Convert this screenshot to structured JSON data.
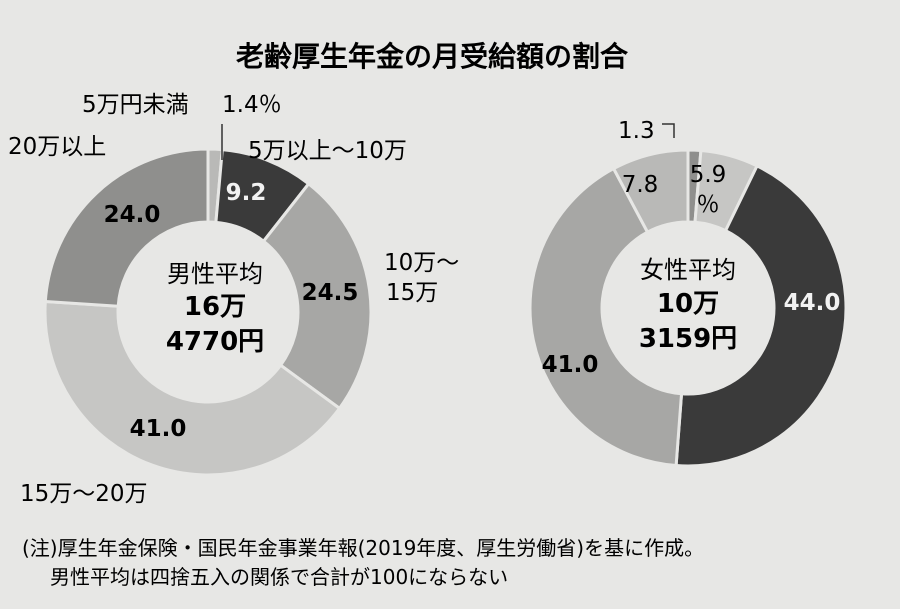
{
  "title": "老齢厚生年金の月受給額の割合",
  "chart_data": [
    {
      "type": "pie",
      "center_label": {
        "line1": "男性平均",
        "line2": "16万",
        "line3": "4770円"
      },
      "slices": [
        {
          "category": "5万円未満",
          "value": 1.4,
          "value_label": "1.4%",
          "color": "#b9b9b7"
        },
        {
          "category": "5万以上～10万",
          "value": 9.2,
          "value_label": "9.2",
          "color": "#3a3a3a"
        },
        {
          "category": "10万～15万",
          "value": 24.5,
          "value_label": "24.5",
          "color": "#a7a7a5"
        },
        {
          "category": "15万～20万",
          "value": 41.0,
          "value_label": "41.0",
          "color": "#c6c6c4"
        },
        {
          "category": "20万以上",
          "value": 24.0,
          "value_label": "24.0",
          "color": "#8f8f8d"
        }
      ]
    },
    {
      "type": "pie",
      "center_label": {
        "line1": "女性平均",
        "line2": "10万",
        "line3": "3159円"
      },
      "slices": [
        {
          "category": "",
          "value": 1.3,
          "value_label": "1.3",
          "color": "#8f8f8d"
        },
        {
          "category": "",
          "value": 5.9,
          "value_label": "5.9%",
          "color": "#c6c6c4"
        },
        {
          "category": "",
          "value": 44.0,
          "value_label": "44.0",
          "color": "#3a3a3a"
        },
        {
          "category": "",
          "value": 41.0,
          "value_label": "41.0",
          "color": "#a7a7a5"
        },
        {
          "category": "",
          "value": 7.8,
          "value_label": "7.8",
          "color": "#b9b9b7"
        }
      ]
    }
  ],
  "labels": {
    "male_cat_0": "5万円未満",
    "male_val_0": "1.4％",
    "male_cat_1": "5万以上～10万",
    "male_val_1": "9.2",
    "male_cat_2a": "10万～",
    "male_cat_2b": "15万",
    "male_val_2": "24.5",
    "male_cat_3": "15万～20万",
    "male_val_3": "41.0",
    "male_cat_4": "20万以上",
    "male_val_4": "24.0",
    "female_val_0": "1.3",
    "female_val_1a": "5.9",
    "female_val_1b": "％",
    "female_val_2": "44.0",
    "female_val_3": "41.0",
    "female_val_4": "7.8"
  },
  "note": {
    "line1": "(注)厚生年金保険・国民年金事業年報(2019年度、厚生労働省)を基に作成。",
    "line2": "男性平均は四捨五入の関係で合計が100にならない"
  }
}
